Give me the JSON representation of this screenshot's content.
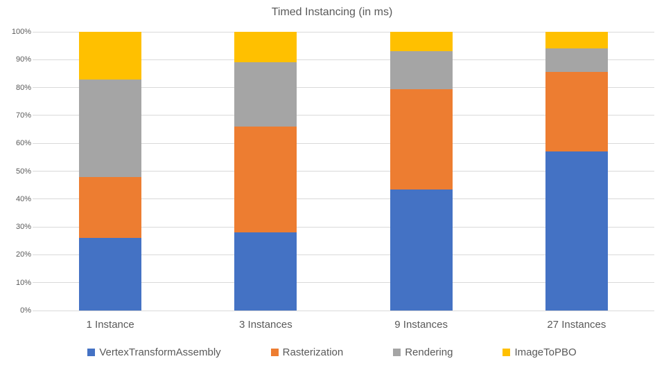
{
  "chart_data": {
    "type": "bar",
    "subtype": "stacked-100-percent-column",
    "title": "Timed Instancing (in ms)",
    "categories": [
      "1 Instance",
      "3 Instances",
      "9 Instances",
      "27 Instances"
    ],
    "series": [
      {
        "name": "VertexTransformAssembly",
        "color": "#4472C4",
        "values": [
          26,
          28,
          43.5,
          57
        ]
      },
      {
        "name": "Rasterization",
        "color": "#ED7D31",
        "values": [
          22,
          38,
          36,
          28.5
        ]
      },
      {
        "name": "Rendering",
        "color": "#A5A5A5",
        "values": [
          35,
          23,
          13.5,
          8.5
        ]
      },
      {
        "name": "ImageToPBO",
        "color": "#FFC000",
        "values": [
          17,
          11,
          7,
          6
        ]
      }
    ],
    "value_unit": "%",
    "y_axis": {
      "min": 0,
      "max": 100,
      "tick_step": 10,
      "ticks": [
        "0%",
        "10%",
        "20%",
        "30%",
        "40%",
        "50%",
        "60%",
        "70%",
        "80%",
        "90%",
        "100%"
      ]
    },
    "grid": true,
    "legend_position": "bottom",
    "colors": {
      "text": "#595959",
      "gridline": "#D9D9D9",
      "background": "#FFFFFF"
    }
  }
}
